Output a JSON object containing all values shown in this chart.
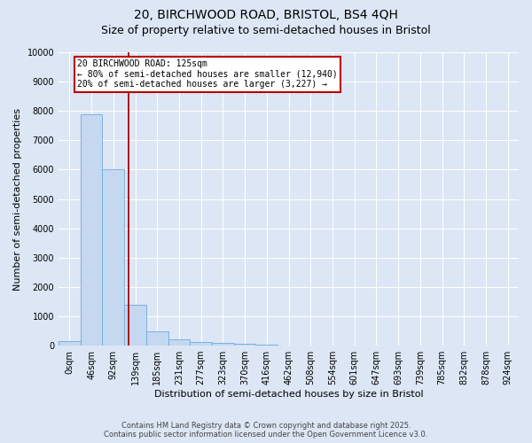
{
  "title1": "20, BIRCHWOOD ROAD, BRISTOL, BS4 4QH",
  "title2": "Size of property relative to semi-detached houses in Bristol",
  "xlabel": "Distribution of semi-detached houses by size in Bristol",
  "ylabel": "Number of semi-detached properties",
  "bin_labels": [
    "0sqm",
    "46sqm",
    "92sqm",
    "139sqm",
    "185sqm",
    "231sqm",
    "277sqm",
    "323sqm",
    "370sqm",
    "416sqm",
    "462sqm",
    "508sqm",
    "554sqm",
    "601sqm",
    "647sqm",
    "693sqm",
    "739sqm",
    "785sqm",
    "832sqm",
    "878sqm",
    "924sqm"
  ],
  "bar_values": [
    150,
    7900,
    6000,
    1400,
    500,
    220,
    130,
    100,
    60,
    30,
    15,
    10,
    5,
    3,
    2,
    1,
    1,
    0,
    0,
    0,
    0
  ],
  "bar_color": "#c5d8f0",
  "bar_edgecolor": "#6aabdb",
  "vline_color": "#aa0000",
  "ylim": [
    0,
    10000
  ],
  "yticks": [
    0,
    1000,
    2000,
    3000,
    4000,
    5000,
    6000,
    7000,
    8000,
    9000,
    10000
  ],
  "annotation_title": "20 BIRCHWOOD ROAD: 125sqm",
  "annotation_line1": "← 80% of semi-detached houses are smaller (12,940)",
  "annotation_line2": "20% of semi-detached houses are larger (3,227) →",
  "annotation_box_color": "#bb0000",
  "footer1": "Contains HM Land Registry data © Crown copyright and database right 2025.",
  "footer2": "Contains public sector information licensed under the Open Government Licence v3.0.",
  "background_color": "#dce6f5",
  "plot_bg_color": "#dce6f5",
  "grid_color": "#ffffff",
  "title_fontsize": 10,
  "subtitle_fontsize": 9,
  "axis_label_fontsize": 8,
  "tick_fontsize": 7,
  "footer_fontsize": 6
}
